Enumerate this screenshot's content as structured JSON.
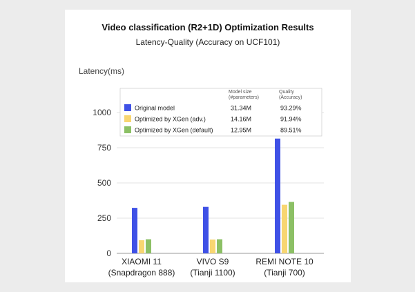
{
  "chart_data": {
    "type": "bar",
    "title": "Video classification (R2+1D) Optimization Results",
    "subtitle": "Latency-Quality (Accuracy on UCF101)",
    "ylabel": "Latency(ms)",
    "ylim": [
      0,
      1000
    ],
    "yticks": [
      "0",
      "250",
      "500",
      "750",
      "1000"
    ],
    "grid": true,
    "categories": [
      {
        "line1": "XIAOMI 11",
        "line2": "(Snapdragon 888)"
      },
      {
        "line1": "VIVO S9",
        "line2": "(Tianji 1100)"
      },
      {
        "line1": "REMI NOTE 10",
        "line2": "(Tianji 700)"
      }
    ],
    "series": [
      {
        "name": "Original model",
        "color": "#3f51e6",
        "values": [
          323,
          330,
          815
        ]
      },
      {
        "name": "Optimized  by  XGen  (adv.)",
        "color": "#f8d671",
        "values": [
          93,
          98,
          345
        ]
      },
      {
        "name": "Optimized by XGen (default)",
        "color": "#8cc065",
        "values": [
          100,
          100,
          365
        ]
      }
    ],
    "legend": {
      "placement": "top",
      "col1_header": [
        "Model size",
        "(#parameters)"
      ],
      "col2_header": [
        "Quality",
        "(Accuracy)"
      ],
      "rows": [
        {
          "size": "31.34M",
          "quality": "93.29%"
        },
        {
          "size": "14.16M",
          "quality": "91.94%"
        },
        {
          "size": "12.95M",
          "quality": "89.51%"
        }
      ]
    }
  }
}
